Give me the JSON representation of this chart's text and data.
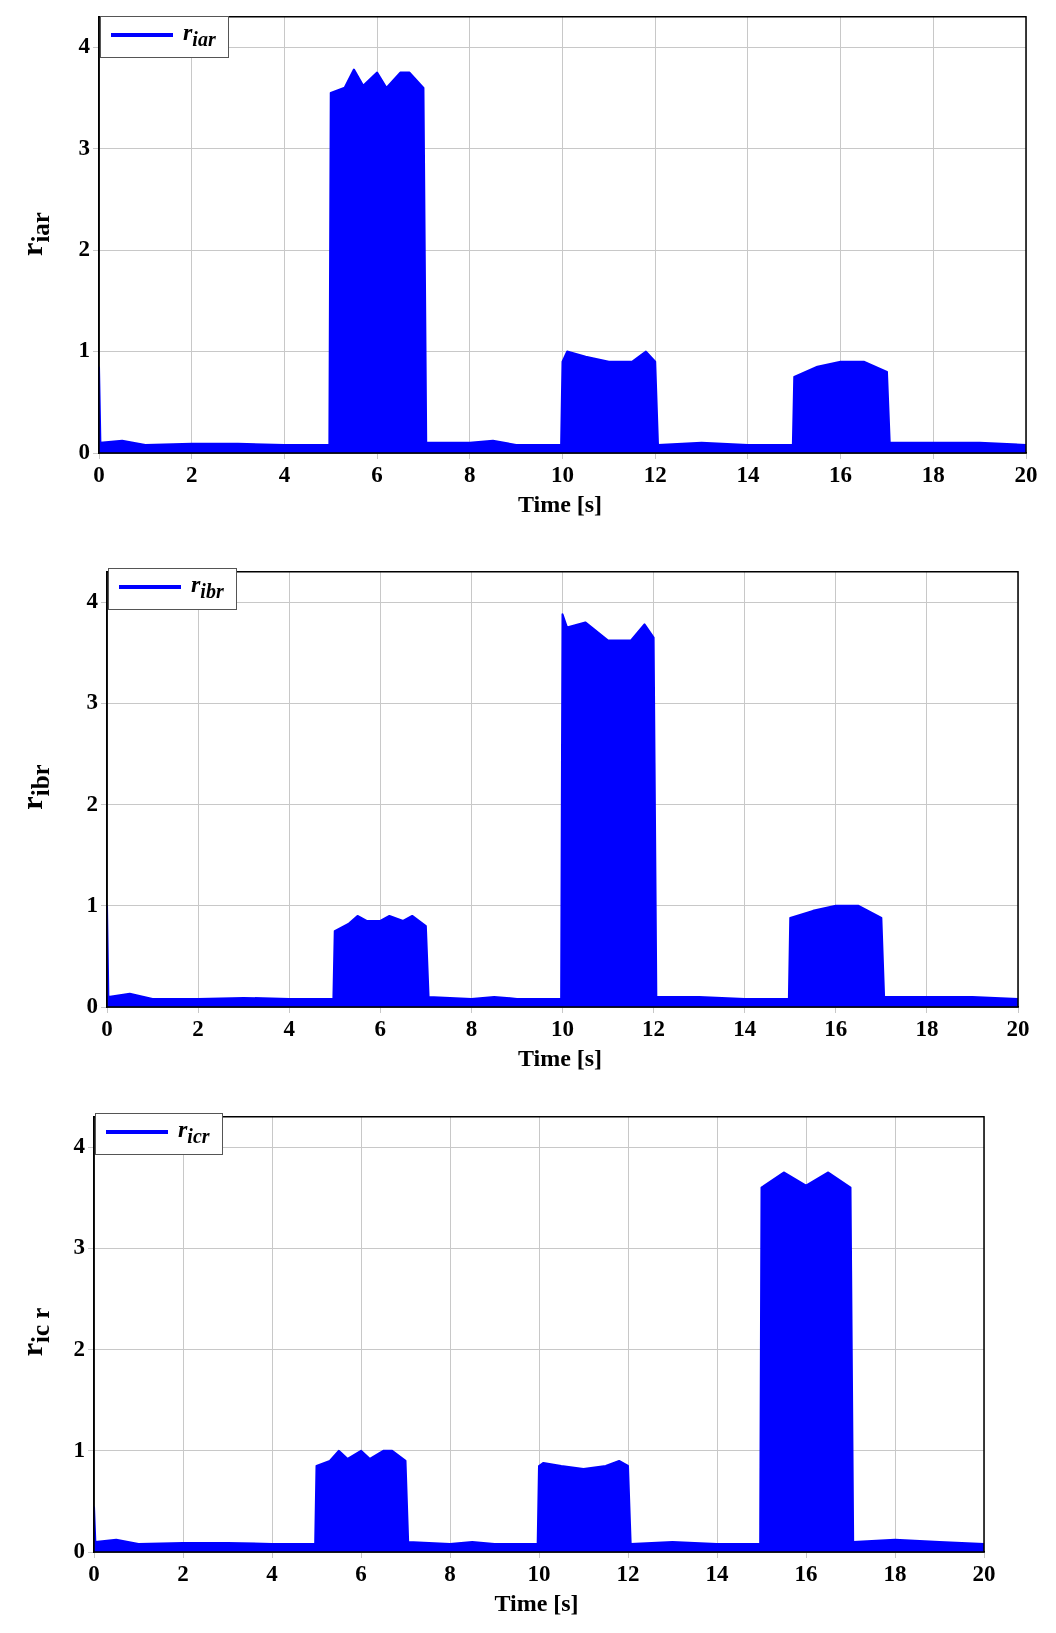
{
  "chart_data": [
    {
      "type": "area",
      "xlabel": "Time [s]",
      "ylabel": "r$_{iar}$",
      "legend": "top left",
      "grid": true,
      "xlim": [
        0,
        20
      ],
      "ylim": [
        0,
        4.3
      ],
      "xticks": [
        0,
        2,
        4,
        6,
        8,
        10,
        12,
        14,
        16,
        18,
        20
      ],
      "yticks": [
        0,
        1,
        2,
        3,
        4
      ],
      "x": [
        0,
        0.03,
        0.5,
        1,
        2,
        3,
        4,
        4.97,
        5.0,
        5.3,
        5.5,
        5.7,
        6.0,
        6.2,
        6.5,
        6.7,
        7.0,
        7.06,
        8,
        8.5,
        9,
        9.97,
        10.0,
        10.1,
        10.5,
        11,
        11.5,
        11.8,
        12.0,
        12.06,
        13,
        14,
        14.97,
        15.0,
        15.5,
        16,
        16.5,
        17.0,
        17.06,
        18,
        19,
        20
      ],
      "series": [
        {
          "name": "r$_{iar}$",
          "color": "#0000ff",
          "values": [
            0.85,
            0.1,
            0.12,
            0.08,
            0.09,
            0.09,
            0.08,
            0.08,
            3.55,
            3.6,
            3.78,
            3.62,
            3.75,
            3.6,
            3.75,
            3.75,
            3.6,
            0.1,
            0.1,
            0.12,
            0.08,
            0.08,
            0.9,
            1.0,
            0.95,
            0.9,
            0.9,
            1.0,
            0.9,
            0.08,
            0.1,
            0.08,
            0.08,
            0.75,
            0.85,
            0.9,
            0.9,
            0.8,
            0.1,
            0.1,
            0.1,
            0.08
          ]
        }
      ]
    },
    {
      "type": "area",
      "xlabel": "Time [s]",
      "ylabel": "r$_{ibr}$",
      "legend": "top left",
      "grid": true,
      "xlim": [
        0,
        20
      ],
      "ylim": [
        0,
        4.3
      ],
      "xticks": [
        0,
        2,
        4,
        6,
        8,
        10,
        12,
        14,
        16,
        18,
        20
      ],
      "yticks": [
        0,
        1,
        2,
        3,
        4
      ],
      "x": [
        0,
        0.03,
        0.5,
        1,
        2,
        3,
        4,
        4.97,
        5.0,
        5.3,
        5.5,
        5.7,
        6.0,
        6.2,
        6.5,
        6.7,
        7.0,
        7.06,
        8,
        8.5,
        9,
        9.97,
        10.0,
        10.1,
        10.5,
        11,
        11.5,
        11.8,
        12.0,
        12.06,
        13,
        14,
        14.97,
        15.0,
        15.5,
        16,
        16.5,
        17.0,
        17.06,
        18,
        19,
        20
      ],
      "series": [
        {
          "name": "r$_{ibr}$",
          "color": "#0000ff",
          "values": [
            1.0,
            0.1,
            0.13,
            0.08,
            0.08,
            0.09,
            0.08,
            0.08,
            0.75,
            0.82,
            0.9,
            0.85,
            0.85,
            0.9,
            0.85,
            0.9,
            0.8,
            0.1,
            0.08,
            0.1,
            0.08,
            0.08,
            3.88,
            3.75,
            3.8,
            3.62,
            3.62,
            3.78,
            3.65,
            0.1,
            0.1,
            0.08,
            0.08,
            0.88,
            0.95,
            1.0,
            1.0,
            0.88,
            0.1,
            0.1,
            0.1,
            0.08
          ]
        }
      ]
    },
    {
      "type": "area",
      "xlabel": "Time [s]",
      "ylabel": "r$_{ic r}$",
      "legend": "top left",
      "grid": true,
      "xlim": [
        0,
        20
      ],
      "ylim": [
        0,
        4.3
      ],
      "xticks": [
        0,
        2,
        4,
        6,
        8,
        10,
        12,
        14,
        16,
        18,
        20
      ],
      "yticks": [
        0,
        1,
        2,
        3,
        4
      ],
      "x": [
        0,
        0.03,
        0.5,
        1,
        2,
        3,
        4,
        4.97,
        5.0,
        5.3,
        5.5,
        5.7,
        6.0,
        6.2,
        6.5,
        6.7,
        7.0,
        7.06,
        8,
        8.5,
        9,
        9.97,
        10.0,
        10.1,
        10.5,
        11,
        11.5,
        11.8,
        12.0,
        12.06,
        13,
        14,
        14.97,
        15.0,
        15.5,
        16,
        16.5,
        17.0,
        17.06,
        18,
        19,
        20
      ],
      "series": [
        {
          "name": "r$_{icr}$",
          "color": "#0000ff",
          "values": [
            0.45,
            0.1,
            0.12,
            0.08,
            0.09,
            0.09,
            0.08,
            0.08,
            0.85,
            0.9,
            1.0,
            0.92,
            1.0,
            0.92,
            1.0,
            1.0,
            0.9,
            0.1,
            0.08,
            0.1,
            0.08,
            0.08,
            0.85,
            0.88,
            0.85,
            0.82,
            0.85,
            0.9,
            0.85,
            0.08,
            0.1,
            0.08,
            0.08,
            3.6,
            3.75,
            3.62,
            3.75,
            3.6,
            0.1,
            0.12,
            0.1,
            0.08
          ]
        }
      ]
    }
  ]
}
